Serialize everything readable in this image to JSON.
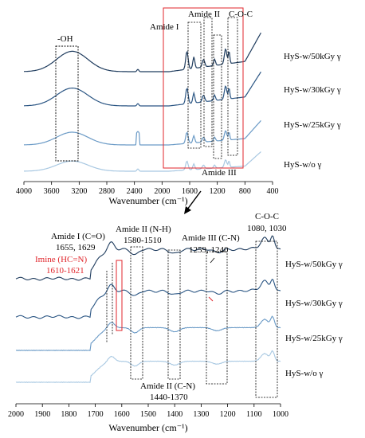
{
  "chart_data": [
    {
      "type": "line",
      "xlabel": "Wavenumber (cm⁻¹)",
      "xlim": [
        4000,
        400
      ],
      "xticks": [
        "4000",
        "3600",
        "3200",
        "2800",
        "2400",
        "2000",
        "1600",
        "1200",
        "800",
        "400"
      ],
      "annotations": [
        "-OH",
        "Amide I",
        "Amide II",
        "C-O-C",
        "Amide III"
      ],
      "series": [
        {
          "name": "HyS-w/50kGy γ",
          "color": "#1f3c5e"
        },
        {
          "name": "HyS-w/30kGy γ",
          "color": "#2a5583"
        },
        {
          "name": "HyS-w/25kGy γ",
          "color": "#6a9ac6"
        },
        {
          "name": "HyS-w/o γ",
          "color": "#a8c8e2"
        }
      ]
    },
    {
      "type": "line",
      "xlabel": "Wavenumber (cm⁻¹)",
      "xlim": [
        2000,
        1000
      ],
      "xticks": [
        "2000",
        "1900",
        "1800",
        "1700",
        "1600",
        "1500",
        "1400",
        "1300",
        "1200",
        "1100",
        "1000"
      ],
      "annotations": {
        "amide1_title": "Amide I (C=O)",
        "amide1_vals": "1655, 1629",
        "imine_title": "Imine (HC=N)",
        "imine_vals": "1610-1621",
        "amide2nh_title": "Amide II (N-H)",
        "amide2nh_vals": "1580-1510",
        "amide3_title": "Amide III (C-N)",
        "amide3_vals": "1259, 1240",
        "coc_title": "C-O-C",
        "coc_vals": "1080, 1030",
        "amide2cn_title": "Amide II (C-N)",
        "amide2cn_vals": "1440-1370"
      },
      "series": [
        {
          "name": "HyS-w/50kGy γ",
          "color": "#1f3c5e"
        },
        {
          "name": "HyS-w/30kGy γ",
          "color": "#2a5583"
        },
        {
          "name": "HyS-w/25kGy γ",
          "color": "#6a9ac6"
        },
        {
          "name": "HyS-w/o γ",
          "color": "#a8c8e2"
        }
      ]
    }
  ]
}
